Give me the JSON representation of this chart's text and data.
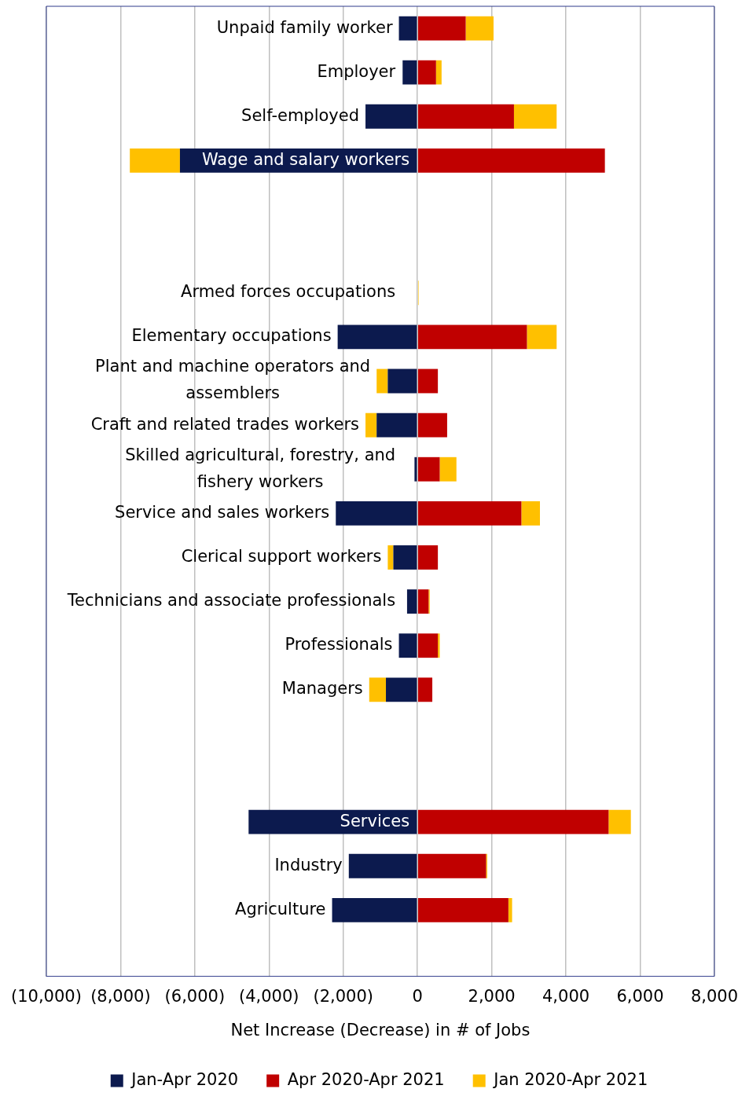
{
  "chart_data": {
    "type": "bar",
    "orientation": "horizontal",
    "stacked": true,
    "xlabel": "Net Increase (Decrease) in # of Jobs",
    "categories": [
      "Unpaid family worker",
      "Employer",
      "Self-employed",
      "Wage and salary workers",
      null,
      null,
      "Armed forces occupations",
      "Elementary occupations",
      "Plant and machine operators and assemblers",
      "Craft and related trades workers",
      "Skilled agricultural, forestry, and fishery workers",
      "Service and sales workers",
      "Clerical support workers",
      "Technicians and associate professionals",
      "Professionals",
      "Managers",
      null,
      null,
      "Services",
      "Industry",
      "Agriculture",
      null
    ],
    "series": [
      {
        "name": "Jan-Apr 2020",
        "color": "#0c1a4e",
        "values": [
          -500,
          -400,
          -1400,
          -6400,
          null,
          null,
          null,
          -2150,
          -800,
          -1100,
          -80,
          -2200,
          -650,
          -280,
          -500,
          -850,
          null,
          null,
          -4550,
          -1850,
          -2300,
          null
        ]
      },
      {
        "name": "Apr 2020-Apr 2021",
        "color": "#c00000",
        "values": [
          1300,
          500,
          2600,
          5050,
          null,
          null,
          null,
          2950,
          550,
          800,
          600,
          2800,
          550,
          300,
          550,
          400,
          null,
          null,
          5150,
          1850,
          2450,
          null
        ]
      },
      {
        "name": "Jan 2020-Apr 2021",
        "color": "#ffc000",
        "values": [
          750,
          150,
          1150,
          -1350,
          null,
          null,
          30,
          800,
          -300,
          -300,
          450,
          500,
          -150,
          30,
          50,
          -450,
          null,
          null,
          600,
          30,
          100,
          null
        ]
      }
    ],
    "xlim": [
      -10000,
      8000
    ],
    "xticks": [
      {
        "value": -10000,
        "label": "(10,000)"
      },
      {
        "value": -8000,
        "label": "(8,000)"
      },
      {
        "value": -6000,
        "label": "(6,000)"
      },
      {
        "value": -4000,
        "label": "(4,000)"
      },
      {
        "value": -2000,
        "label": "(2,000)"
      },
      0,
      {
        "value": 2000,
        "label": "2,000"
      },
      {
        "value": 4000,
        "label": "4,000"
      },
      {
        "value": 6000,
        "label": "6,000"
      },
      {
        "value": 8000,
        "label": "8,000"
      }
    ],
    "grid": "x",
    "legend": "bottom"
  }
}
